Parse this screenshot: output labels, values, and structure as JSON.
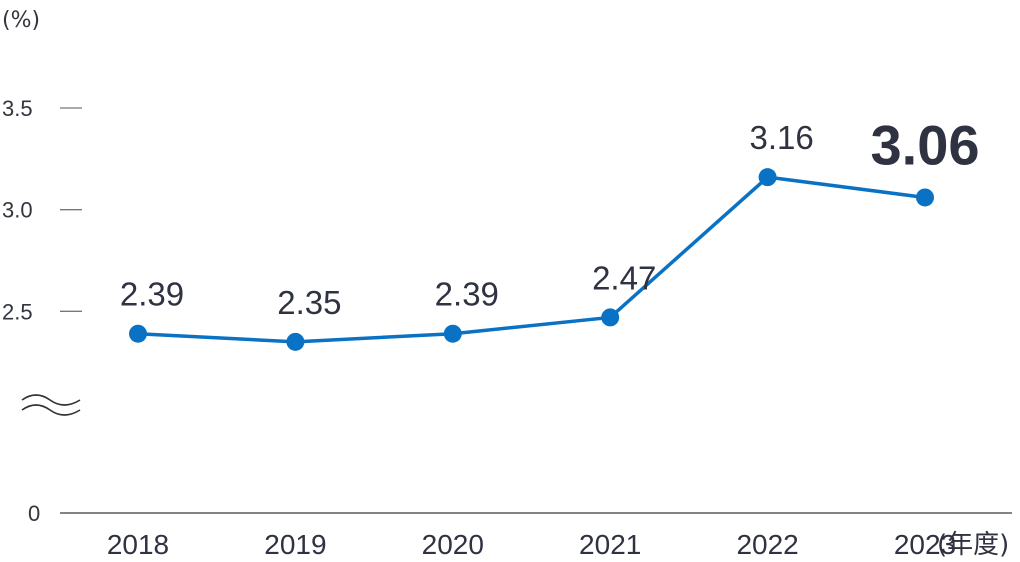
{
  "chart_data": {
    "type": "line",
    "unit_label": "(%)",
    "x_suffix": "(年度)",
    "categories": [
      "2018",
      "2019",
      "2020",
      "2021",
      "2022",
      "2023"
    ],
    "series": [
      {
        "values": [
          2.39,
          2.35,
          2.39,
          2.47,
          3.16,
          3.06
        ],
        "labels": [
          "2.39",
          "2.35",
          "2.39",
          "2.47",
          "3.16",
          "3.06"
        ]
      }
    ],
    "y_ticks": [
      {
        "value": 3.5,
        "label": "3.5"
      },
      {
        "value": 3.0,
        "label": "3.0"
      },
      {
        "value": 2.5,
        "label": "2.5"
      },
      {
        "value": 0,
        "label": "0"
      }
    ],
    "ylim_upper": [
      2.0,
      3.5
    ],
    "axis_break": true,
    "highlight_index": 5,
    "colors": {
      "line": "#0a72c4",
      "highlight_text": "#0a72c4",
      "text": "#2f3240",
      "axis": "#5a5a5a"
    }
  }
}
